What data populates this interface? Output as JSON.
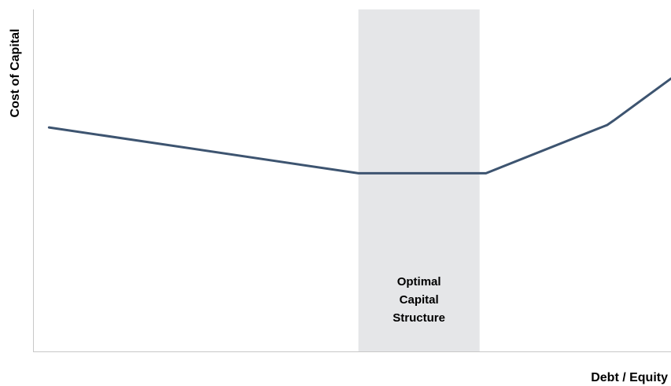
{
  "chart_data": {
    "type": "line",
    "title": "",
    "xlabel": "Debt / Equity",
    "ylabel": "Cost of Capital",
    "xlim": [
      0,
      100
    ],
    "ylim": [
      0,
      100
    ],
    "grid": false,
    "x_ticks_shown": false,
    "y_ticks_shown": false,
    "highlight_region": {
      "x_range": [
        51,
        70
      ],
      "label_lines": [
        "Optimal",
        "Capital",
        "Structure"
      ],
      "color": "#e5e6e8"
    },
    "series": [
      {
        "color": "#3d5470",
        "x": [
          2.5,
          51,
          52,
          70,
          71,
          90,
          91,
          100
        ],
        "y": [
          65.5,
          52.1,
          52.1,
          52.1,
          52.1,
          66.2,
          67.5,
          79.8
        ]
      }
    ]
  }
}
